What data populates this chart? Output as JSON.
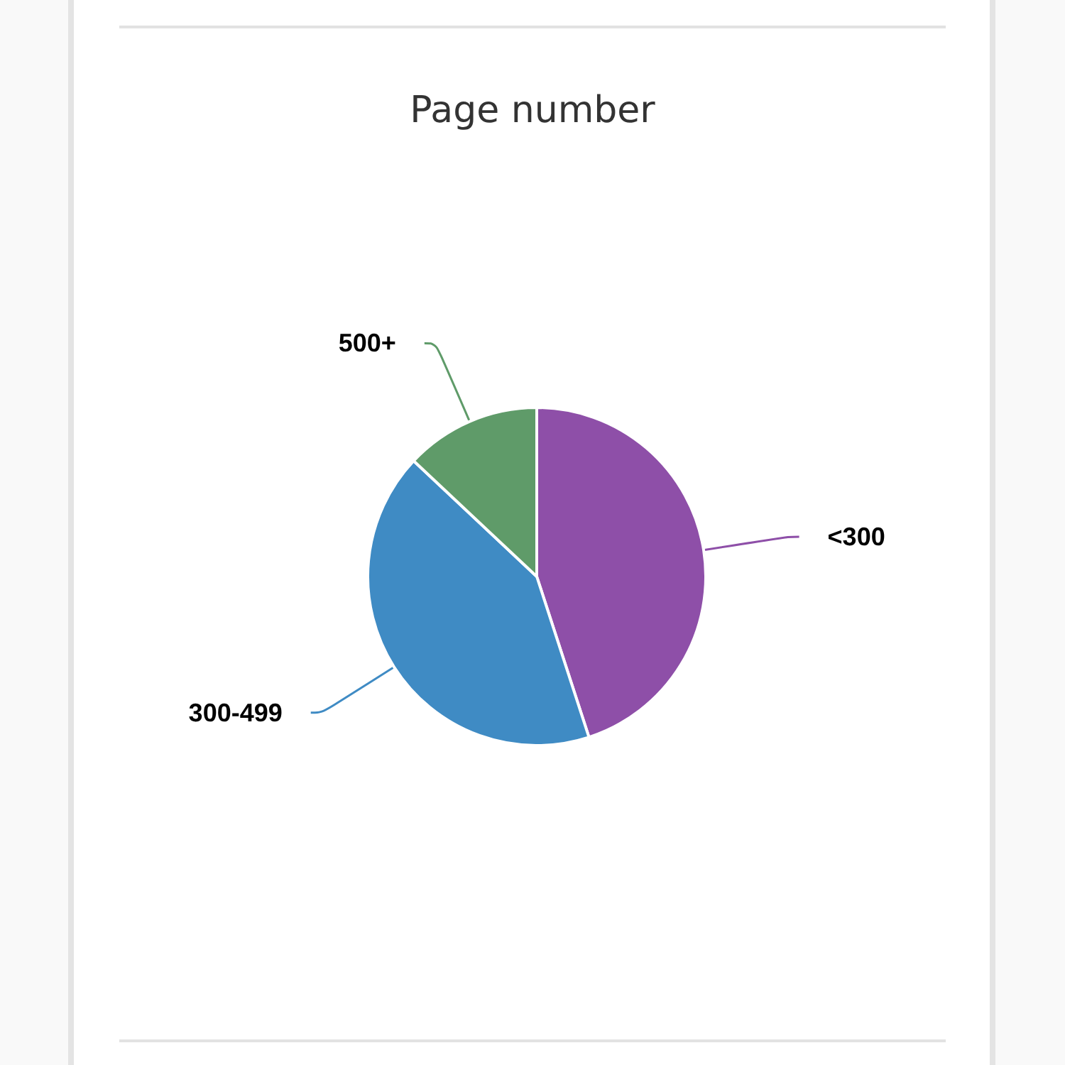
{
  "chart_data": {
    "type": "pie",
    "title": "Page number",
    "categories": [
      "<300",
      "300-499",
      "500+"
    ],
    "values": [
      45,
      42,
      13
    ],
    "colors": [
      "#8e4fa8",
      "#3f8bc4",
      "#5f9b69"
    ]
  }
}
